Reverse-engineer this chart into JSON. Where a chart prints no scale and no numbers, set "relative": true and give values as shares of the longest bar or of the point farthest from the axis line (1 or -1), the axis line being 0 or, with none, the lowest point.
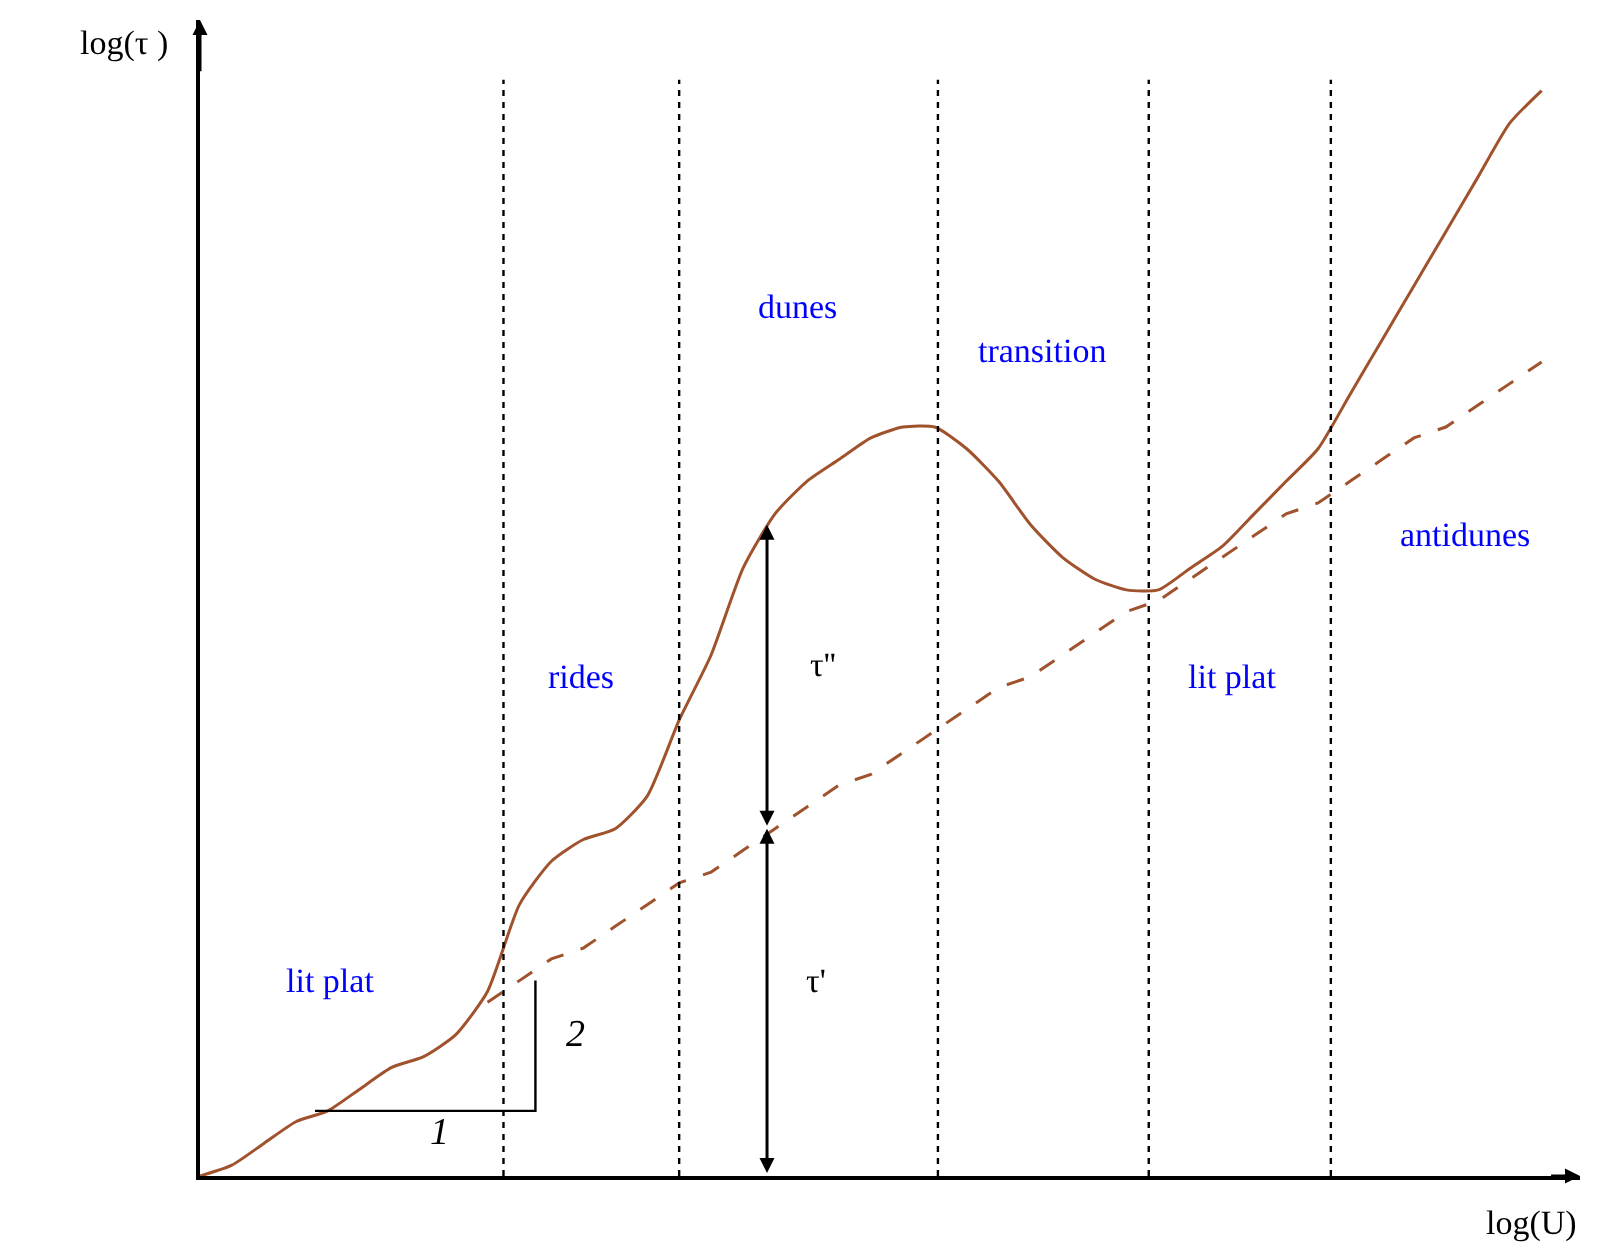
{
  "chart_data": {
    "type": "line",
    "relative": true,
    "xlabel": "log(U)",
    "ylabel": "log(τ )",
    "categories": [
      null,
      null,
      null,
      null,
      null,
      null,
      null,
      null,
      null,
      null,
      null,
      null,
      null,
      null,
      null,
      null,
      null,
      null,
      null,
      null,
      null,
      null,
      null,
      null,
      null,
      null,
      null,
      null,
      null,
      null,
      null,
      null,
      null,
      null,
      null,
      null,
      null,
      null,
      null,
      null,
      null,
      null,
      null
    ],
    "series": [
      {
        "color": "#a0522d",
        "line_style": "solid",
        "values": [
          0,
          0.01,
          0.03,
          0.05,
          0.06,
          0.08,
          0.1,
          0.11,
          0.13,
          0.17,
          0.25,
          0.29,
          0.31,
          0.32,
          0.35,
          0.42,
          0.48,
          0.56,
          0.61,
          0.64,
          0.66,
          0.68,
          0.69,
          0.69,
          0.67,
          0.64,
          0.6,
          0.57,
          0.55,
          0.54,
          0.54,
          0.56,
          0.58,
          0.61,
          0.64,
          0.67,
          0.72,
          0.77,
          0.82,
          0.87,
          0.92,
          0.97,
          1
        ]
      },
      {
        "color": "#a0522d",
        "line_style": "dashed",
        "values": [
          null,
          null,
          null,
          null,
          null,
          null,
          null,
          null,
          null,
          0.16,
          0.18,
          0.2,
          0.21,
          0.23,
          0.25,
          0.27,
          0.28,
          0.3,
          0.32,
          0.34,
          0.36,
          0.37,
          0.39,
          0.41,
          0.43,
          0.45,
          0.46,
          0.48,
          0.5,
          0.52,
          0.53,
          0.55,
          0.57,
          0.59,
          0.61,
          0.62,
          0.64,
          0.66,
          0.68,
          0.69,
          0.71,
          0.73,
          0.75
        ]
      }
    ],
    "annotations": [
      "lit plat",
      "rides",
      "dunes",
      "transition",
      "lit plat",
      "antidunes",
      "τ''",
      "τ'",
      "2",
      "1"
    ]
  }
}
